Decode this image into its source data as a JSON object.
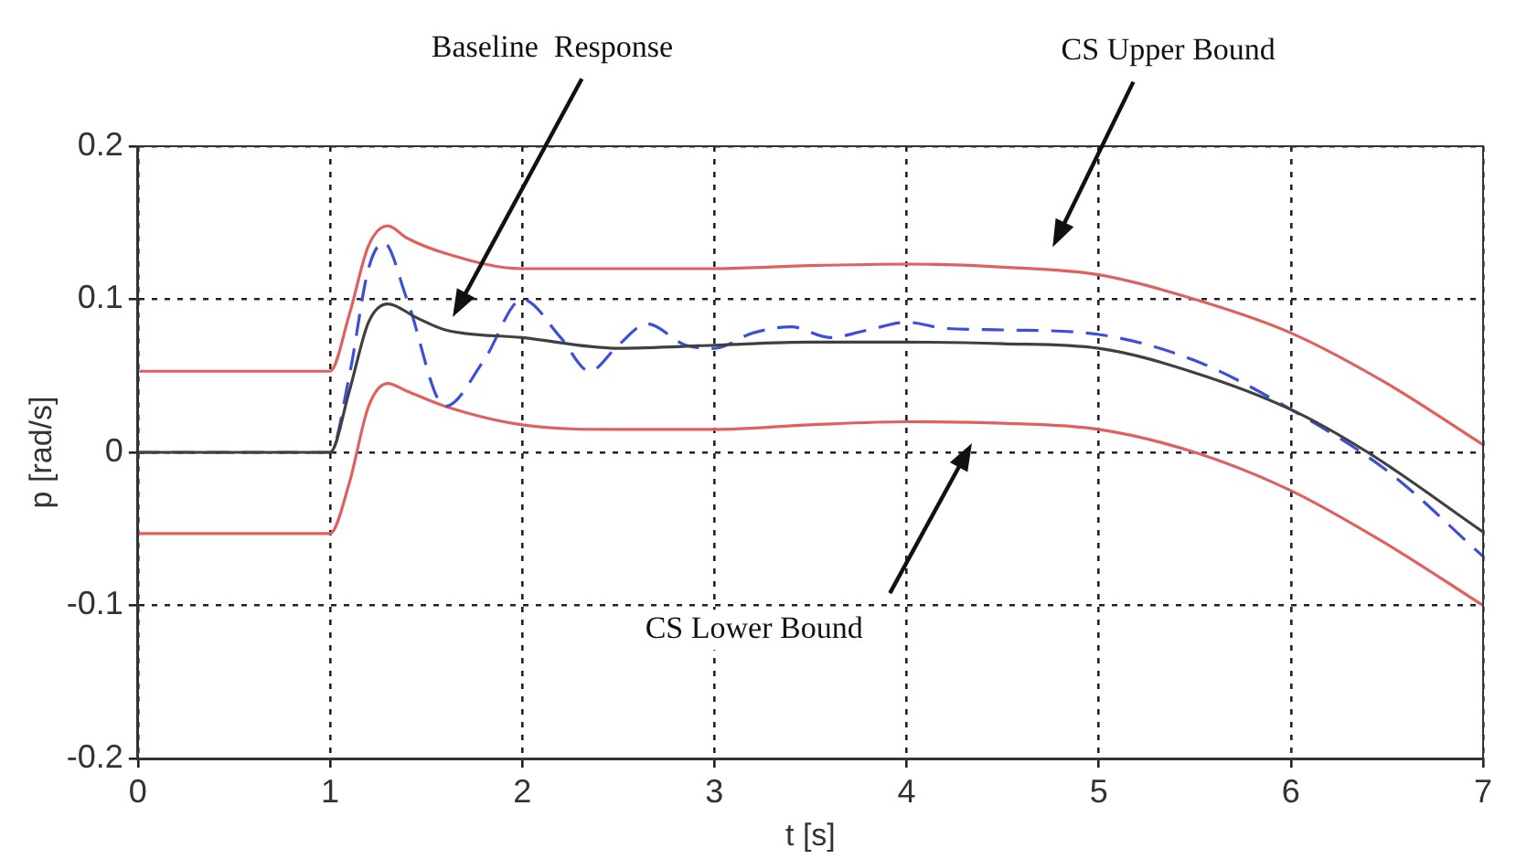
{
  "chart_data": {
    "type": "line",
    "xlabel": "t [s]",
    "ylabel": "p [rad/s]",
    "xlim": [
      0,
      7
    ],
    "ylim": [
      -0.2,
      0.2
    ],
    "xticks": [
      0,
      1,
      2,
      3,
      4,
      5,
      6,
      7
    ],
    "yticks": [
      -0.2,
      -0.1,
      0,
      0.1,
      0.2
    ],
    "grid": true,
    "legend": false,
    "marker": "none",
    "annotations": [
      "Baseline  Response",
      "CS Upper Bound",
      "CS Lower Bound"
    ],
    "series": [
      {
        "color": "#e06060",
        "line_style": "solid",
        "x": [
          0,
          1,
          1.1,
          1.2,
          1.3,
          1.4,
          1.6,
          2,
          2.5,
          3,
          3.5,
          4,
          4.5,
          5,
          5.5,
          6,
          6.5,
          7
        ],
        "values": [
          0.053,
          0.053,
          0.09,
          0.135,
          0.148,
          0.14,
          0.13,
          0.12,
          0.12,
          0.12,
          0.122,
          0.123,
          0.121,
          0.116,
          0.1,
          0.078,
          0.045,
          0.005
        ]
      },
      {
        "color": "#404040",
        "line_style": "solid",
        "x": [
          0,
          1,
          1.1,
          1.2,
          1.3,
          1.45,
          1.6,
          2,
          2.5,
          3,
          3.5,
          4,
          4.5,
          5,
          5.5,
          6,
          6.4,
          7
        ],
        "values": [
          0,
          0,
          0.04,
          0.085,
          0.097,
          0.088,
          0.08,
          0.075,
          0.068,
          0.07,
          0.072,
          0.072,
          0.071,
          0.068,
          0.052,
          0.028,
          0,
          -0.052
        ]
      },
      {
        "color": "#3b4fd8",
        "line_style": "dashed",
        "x": [
          0,
          1,
          1.1,
          1.2,
          1.28,
          1.4,
          1.6,
          1.8,
          2,
          2.2,
          2.35,
          2.5,
          2.65,
          2.85,
          3,
          3.2,
          3.4,
          3.6,
          3.8,
          4,
          4.2,
          4.5,
          5,
          5.5,
          6,
          6.5,
          7
        ],
        "values": [
          0,
          0,
          0.05,
          0.12,
          0.137,
          0.1,
          0.03,
          0.06,
          0.1,
          0.075,
          0.053,
          0.07,
          0.084,
          0.07,
          0.068,
          0.078,
          0.082,
          0.075,
          0.08,
          0.085,
          0.081,
          0.08,
          0.077,
          0.06,
          0.028,
          -0.012,
          -0.068
        ]
      },
      {
        "color": "#e06060",
        "line_style": "solid",
        "x": [
          0,
          1,
          1.1,
          1.2,
          1.3,
          1.4,
          1.6,
          2,
          2.5,
          3,
          3.5,
          4,
          4.5,
          5,
          5.5,
          6,
          6.5,
          7
        ],
        "values": [
          -0.053,
          -0.053,
          -0.02,
          0.03,
          0.045,
          0.04,
          0.03,
          0.018,
          0.015,
          0.015,
          0.018,
          0.02,
          0.019,
          0.015,
          0.0,
          -0.025,
          -0.06,
          -0.1
        ]
      }
    ]
  }
}
